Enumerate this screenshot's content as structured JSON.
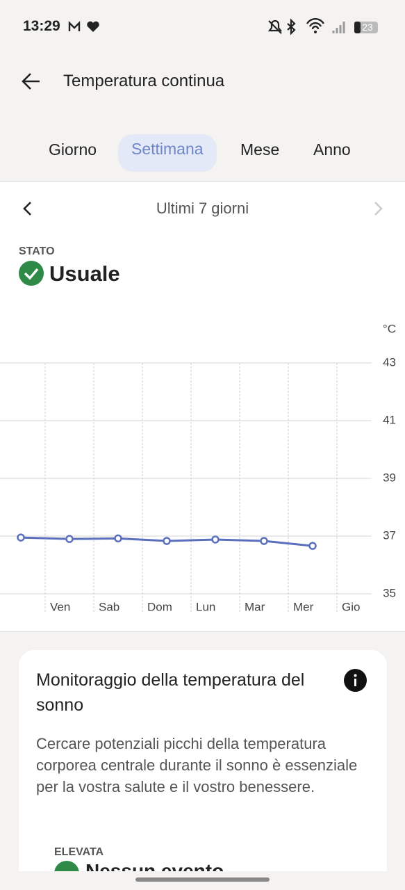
{
  "status_bar": {
    "time": "13:29",
    "battery": "23"
  },
  "header": {
    "title": "Temperatura continua"
  },
  "tabs": [
    "Giorno",
    "Settimana",
    "Mese",
    "Anno"
  ],
  "period": "Ultimi 7 giorni",
  "status": {
    "label": "STATO",
    "value": "Usuale"
  },
  "chart_data": {
    "type": "line",
    "ylabel": "°C",
    "categories": [
      null,
      "Ven",
      "Sab",
      "Dom",
      "Lun",
      "Mar",
      "Mer",
      "Gio"
    ],
    "series": [
      {
        "name": "Temperatura",
        "color": "#5a6fbd",
        "values": [
          36.95,
          36.9,
          36.92,
          36.83,
          36.88,
          36.83,
          36.66,
          null
        ]
      }
    ],
    "ylim": [
      35,
      43
    ],
    "yticks": [
      35,
      37,
      39,
      41,
      43
    ],
    "grid": true
  },
  "card": {
    "title": "Monitoraggio della temperatura del sonno",
    "text": "Cercare potenziali picchi della temperatura corporea centrale durante il sonno è essenziale per la vostra salute e il vostro benessere.",
    "label": "ELEVATA",
    "value": "Nessun evento"
  }
}
